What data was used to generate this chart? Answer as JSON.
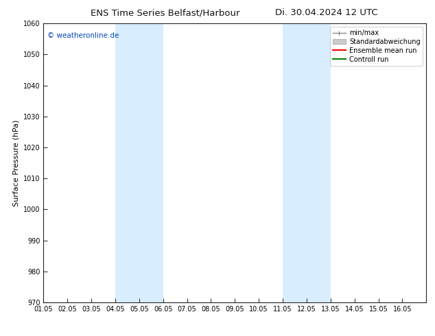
{
  "title_left": "ENS Time Series Belfast/Harbour",
  "title_right": "Di. 30.04.2024 12 UTC",
  "ylabel": "Surface Pressure (hPa)",
  "ylim": [
    970,
    1060
  ],
  "yticks": [
    970,
    980,
    990,
    1000,
    1010,
    1020,
    1030,
    1040,
    1050,
    1060
  ],
  "xlim": [
    0,
    16
  ],
  "xtick_labels": [
    "01.05",
    "02.05",
    "03.05",
    "04.05",
    "05.05",
    "06.05",
    "07.05",
    "08.05",
    "09.05",
    "10.05",
    "11.05",
    "12.05",
    "13.05",
    "14.05",
    "15.05",
    "16.05"
  ],
  "watermark": "© weatheronline.de",
  "watermark_color": "#0044bb",
  "shaded_bands": [
    {
      "x_start": 3,
      "x_end": 5,
      "color": "#d8eeff"
    },
    {
      "x_start": 10,
      "x_end": 12,
      "color": "#d8eeff"
    }
  ],
  "legend_items": [
    {
      "label": "min/max",
      "color": "#888888",
      "style": "errorbar"
    },
    {
      "label": "Standardabweichung",
      "color": "#cccccc",
      "style": "fill"
    },
    {
      "label": "Ensemble mean run",
      "color": "red",
      "style": "line"
    },
    {
      "label": "Controll run",
      "color": "green",
      "style": "line"
    }
  ],
  "background_color": "#ffffff",
  "title_fontsize": 9.5,
  "ylabel_fontsize": 8,
  "tick_fontsize": 7,
  "legend_fontsize": 7,
  "watermark_fontsize": 7.5
}
